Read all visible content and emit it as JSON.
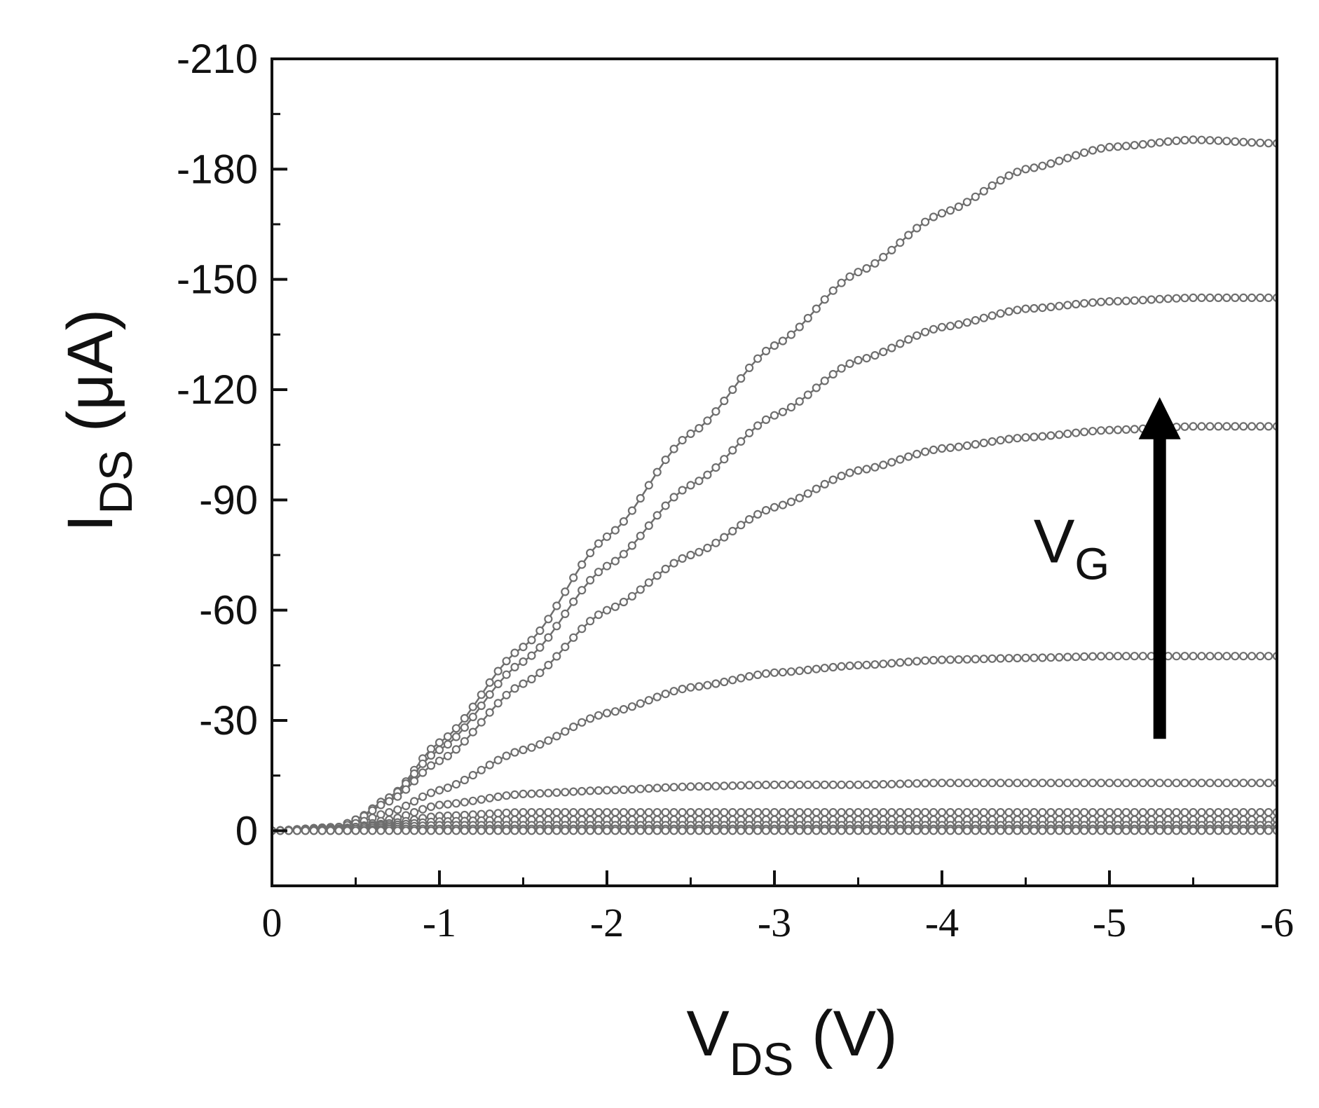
{
  "chart_data": {
    "type": "line",
    "title": "",
    "xlabel": {
      "main": "V",
      "sub": "DS",
      "unit": " (V)"
    },
    "ylabel": {
      "main": "I",
      "sub": "DS",
      "unit": " (μA)"
    },
    "xlim": [
      0,
      -6
    ],
    "ylim": [
      15,
      -210
    ],
    "x_ticks": [
      0,
      -1,
      -2,
      -3,
      -4,
      -5,
      -6
    ],
    "x_tick_labels": [
      "0",
      "-1",
      "-2",
      "-3",
      "-4",
      "-5",
      "-6"
    ],
    "y_ticks": [
      0,
      -30,
      -60,
      -90,
      -120,
      -150,
      -180,
      -210
    ],
    "y_tick_labels": [
      "0",
      "-30",
      "-60",
      "-90",
      "-120",
      "-150",
      "-180",
      "-210"
    ],
    "grid": false,
    "legend": "none",
    "marker": "open-circle",
    "line_color": "#6e6e6e",
    "annotation": {
      "main": "V",
      "sub": "G",
      "arrow_direction": "up",
      "x": -5.3,
      "y_from": -25,
      "y_to": -117
    },
    "series": [
      {
        "x": [
          0,
          -0.4,
          -0.5,
          -0.7,
          -1.0,
          -1.5,
          -2.0,
          -2.5,
          -3.0,
          -3.5,
          -4.0,
          -4.5,
          -5.0,
          -5.5,
          -6.0
        ],
        "values": [
          0,
          -1,
          -3,
          -9,
          -24,
          -50,
          -80,
          -108,
          -132,
          -152,
          -168,
          -180,
          -186,
          -188,
          -187
        ]
      },
      {
        "x": [
          0,
          -0.4,
          -0.5,
          -0.7,
          -1.0,
          -1.5,
          -2.0,
          -2.5,
          -3.0,
          -3.5,
          -4.0,
          -4.5,
          -5.0,
          -5.5,
          -6.0
        ],
        "values": [
          0,
          -1,
          -3,
          -9,
          -22,
          -46,
          -72,
          -94,
          -113,
          -128,
          -137,
          -142,
          -144,
          -145,
          -145
        ]
      },
      {
        "x": [
          0,
          -0.4,
          -0.5,
          -0.7,
          -1.0,
          -1.5,
          -2.0,
          -2.5,
          -3.0,
          -3.5,
          -4.0,
          -4.5,
          -5.0,
          -5.5,
          -6.0
        ],
        "values": [
          0,
          -1,
          -3,
          -8,
          -19,
          -40,
          -60,
          -75,
          -88,
          -98,
          -104,
          -107,
          -109,
          -110,
          -110
        ]
      },
      {
        "x": [
          0,
          -0.4,
          -0.5,
          -0.7,
          -1.0,
          -1.5,
          -2.0,
          -2.5,
          -3.0,
          -3.5,
          -4.0,
          -4.5,
          -5.0,
          -5.5,
          -6.0
        ],
        "values": [
          0,
          -1,
          -2,
          -5,
          -11,
          -22,
          -32,
          -39,
          -43,
          -45,
          -46.5,
          -47,
          -47.5,
          -47.5,
          -47.5
        ]
      },
      {
        "x": [
          0,
          -0.4,
          -0.5,
          -0.7,
          -1.0,
          -1.5,
          -2.0,
          -2.5,
          -3.0,
          -3.5,
          -4.0,
          -4.5,
          -5.0,
          -5.5,
          -6.0
        ],
        "values": [
          0,
          -0.5,
          -1,
          -3,
          -7,
          -10,
          -11,
          -12,
          -12.5,
          -12.5,
          -13,
          -13,
          -13,
          -13,
          -13
        ]
      },
      {
        "x": [
          0,
          -0.4,
          -0.5,
          -0.7,
          -1.0,
          -1.5,
          -2.0,
          -2.5,
          -3.0,
          -3.5,
          -4.0,
          -4.5,
          -5.0,
          -5.5,
          -6.0
        ],
        "values": [
          0,
          -0.5,
          -1,
          -2,
          -4,
          -5,
          -5,
          -5,
          -5,
          -5,
          -5,
          -5,
          -5,
          -5,
          -5
        ]
      },
      {
        "x": [
          0,
          -0.4,
          -0.5,
          -0.7,
          -1.0,
          -1.5,
          -2.0,
          -2.5,
          -3.0,
          -3.5,
          -4.0,
          -4.5,
          -5.0,
          -5.5,
          -6.0
        ],
        "values": [
          0,
          -0.5,
          -1,
          -1.5,
          -2.5,
          -3,
          -3,
          -3,
          -3,
          -3,
          -3,
          -3,
          -3,
          -3,
          -3
        ]
      },
      {
        "x": [
          0,
          -0.4,
          -0.5,
          -0.7,
          -1.0,
          -1.5,
          -2.0,
          -2.5,
          -3.0,
          -3.5,
          -4.0,
          -4.5,
          -5.0,
          -5.5,
          -6.0
        ],
        "values": [
          0,
          -0.3,
          -0.5,
          -1,
          -1.5,
          -1.5,
          -1.5,
          -1.5,
          -1.5,
          -1.5,
          -1.5,
          -1.5,
          -1.5,
          -1.5,
          -1.5
        ]
      },
      {
        "x": [
          0,
          -0.4,
          -0.5,
          -0.7,
          -1.0,
          -1.5,
          -2.0,
          -2.5,
          -3.0,
          -3.5,
          -4.0,
          -4.5,
          -5.0,
          -5.5,
          -6.0
        ],
        "values": [
          0,
          0,
          0,
          -0.5,
          -0.5,
          -0.5,
          -0.5,
          -0.5,
          -0.5,
          -0.5,
          -0.5,
          -0.5,
          -0.5,
          -0.5,
          -0.5
        ]
      },
      {
        "x": [
          0,
          -0.4,
          -0.5,
          -0.7,
          -1.0,
          -1.5,
          -2.0,
          -2.5,
          -3.0,
          -3.5,
          -4.0,
          -4.5,
          -5.0,
          -5.5,
          -6.0
        ],
        "values": [
          0,
          0,
          0,
          0,
          0,
          0,
          0,
          0,
          0,
          0,
          0,
          0,
          0,
          0,
          0
        ]
      }
    ]
  }
}
